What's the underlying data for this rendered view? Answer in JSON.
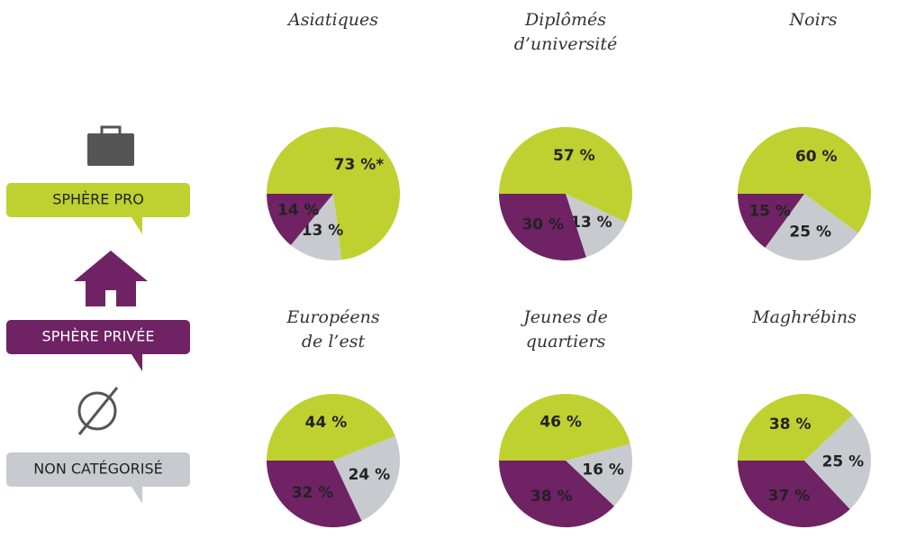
{
  "legend": [
    {
      "label": "SPHÈRE PRO",
      "color": "#bfd130"
    },
    {
      "label": "SPHÈRE PRIVÉE",
      "color": "#6f2264"
    },
    {
      "label": "NON CATÉGORISÉ",
      "color": "#c7cbd0"
    }
  ],
  "chart_data": [
    {
      "type": "pie",
      "title": [
        "Asiatiques"
      ],
      "values": [
        73,
        14,
        13
      ],
      "value_labels": [
        "73 %*",
        "14 %",
        "13 %"
      ]
    },
    {
      "type": "pie",
      "title": [
        "Diplômés",
        "d’université"
      ],
      "values": [
        57,
        30,
        13
      ],
      "value_labels": [
        "57 %",
        "30 %",
        "13 %"
      ]
    },
    {
      "type": "pie",
      "title": [
        "Noirs"
      ],
      "values": [
        60,
        15,
        25
      ],
      "value_labels": [
        "60 %",
        "15 %",
        "25 %"
      ]
    },
    {
      "type": "pie",
      "title": [
        "Européens",
        "de l’est"
      ],
      "values": [
        44,
        32,
        24
      ],
      "value_labels": [
        "44 %",
        "32 %",
        "24 %"
      ]
    },
    {
      "type": "pie",
      "title": [
        "Jeunes de",
        "quartiers"
      ],
      "values": [
        46,
        38,
        16
      ],
      "value_labels": [
        "46 %",
        "38 %",
        "16 %"
      ]
    },
    {
      "type": "pie",
      "title": [
        "Maghrébins"
      ],
      "values": [
        38,
        37,
        25
      ],
      "value_labels": [
        "38 %",
        "37 %",
        "25 %"
      ]
    }
  ]
}
